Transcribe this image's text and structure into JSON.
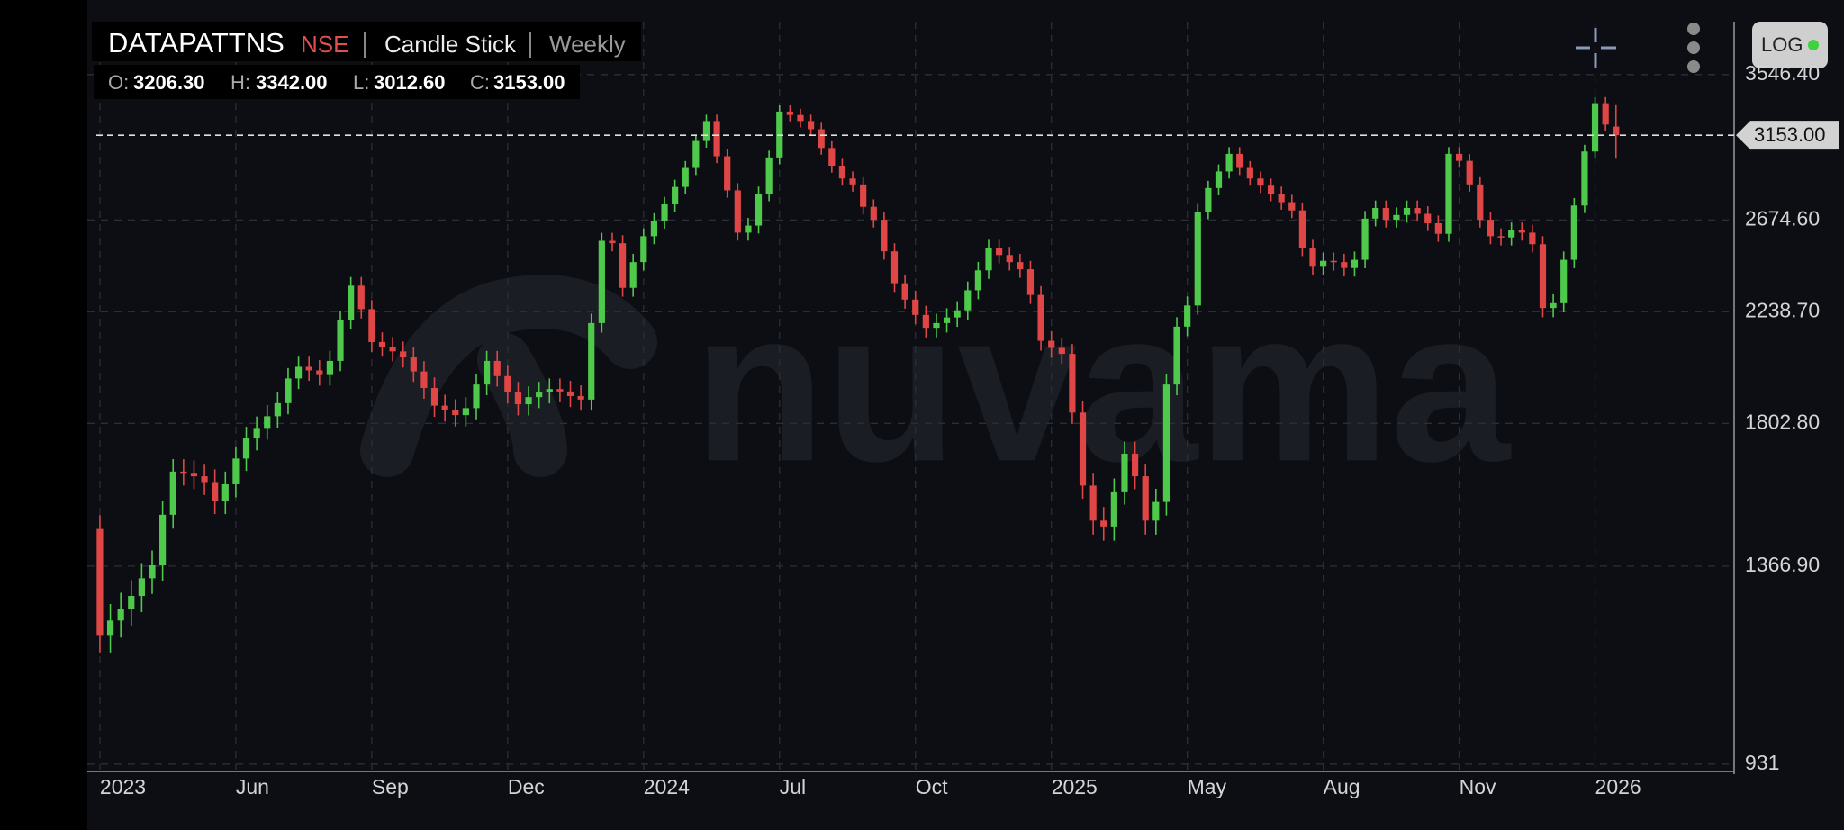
{
  "chart_data": {
    "type": "candlestick",
    "symbol": "DATAPATTNS",
    "exchange": "NSE",
    "chart_style": "Candle Stick",
    "interval": "Weekly",
    "ohlc_legend": [
      {
        "label": "O:",
        "value": "3206.30"
      },
      {
        "label": "H:",
        "value": "3342.00"
      },
      {
        "label": "L:",
        "value": "3012.60"
      },
      {
        "label": "C:",
        "value": "3153.00"
      }
    ],
    "log_button": "LOG",
    "watermark": "nuvama",
    "log_scale": true,
    "grid": true,
    "up_color": "#4fc94c",
    "down_color": "#e04646",
    "last_price": {
      "value": 3153,
      "label": "3153.00"
    },
    "ylim": [
      921,
      3930
    ],
    "yticks": [
      931,
      {
        "value": 1366.9,
        "label": "1366.90"
      },
      {
        "value": 1802.8,
        "label": "1802.80"
      },
      {
        "value": 2238.7,
        "label": "2238.70"
      },
      {
        "value": 2674.6,
        "label": "2674.60"
      },
      {
        "value": 3546.4,
        "label": "3546.40"
      }
    ],
    "xlim": [
      -1.2,
      156.3
    ],
    "xticks": [
      {
        "value": 0,
        "label": "2023"
      },
      {
        "value": 13,
        "label": "Jun"
      },
      {
        "value": 26,
        "label": "Sep"
      },
      {
        "value": 39,
        "label": "Dec"
      },
      {
        "value": 52,
        "label": "2024"
      },
      {
        "value": 65,
        "label": "Jul"
      },
      {
        "value": 78,
        "label": "Oct"
      },
      {
        "value": 91,
        "label": "2025"
      },
      {
        "value": 104,
        "label": "May"
      },
      {
        "value": 117,
        "label": "Aug"
      },
      {
        "value": 130,
        "label": "Nov"
      },
      {
        "value": 143,
        "label": "2026"
      }
    ],
    "open": [
      1469,
      1196,
      1230,
      1258,
      1290,
      1335,
      1369,
      1510,
      1642,
      1638,
      1627,
      1609,
      1552,
      1602,
      1684,
      1751,
      1787,
      1828,
      1875,
      1967,
      2012,
      1998,
      1980,
      2035,
      2204,
      2355,
      2250,
      2111,
      2092,
      2073,
      2049,
      1994,
      1931,
      1866,
      1849,
      1832,
      1857,
      1944,
      2035,
      1976,
      1914,
      1871,
      1897,
      1914,
      1927,
      1918,
      1901,
      1888,
      2190,
      2569,
      2557,
      2345,
      2465,
      2592,
      2670,
      2757,
      2852,
      2959,
      3118,
      3241,
      3027,
      2833,
      2610,
      2646,
      2814,
      3020,
      3301,
      3279,
      3241,
      3190,
      3076,
      2972,
      2899,
      2866,
      2744,
      2676,
      2517,
      2366,
      2292,
      2225,
      2170,
      2190,
      2214,
      2245,
      2334,
      2426,
      2534,
      2499,
      2465,
      2431,
      2313,
      2116,
      2087,
      2063,
      1841,
      1598,
      1493,
      1476,
      1580,
      1700,
      1627,
      1493,
      1548,
      1944,
      2175,
      2266,
      2719,
      2846,
      2939,
      3041,
      2959,
      2899,
      2859,
      2814,
      2769,
      2725,
      2534,
      2443,
      2471,
      2465,
      2437,
      2476,
      2682,
      2738,
      2676,
      2701,
      2738,
      2707,
      2658,
      2604,
      3041,
      3000,
      2866,
      2676,
      2592,
      2586,
      2622,
      2610,
      2552,
      2255,
      2276,
      2476,
      2751,
      3055,
      3355,
      3206.3
    ],
    "high": [
      1509,
      1270,
      1298,
      1330,
      1375,
      1409,
      1550,
      1682,
      1682,
      1678,
      1667,
      1649,
      1642,
      1724,
      1791,
      1827,
      1868,
      1915,
      2007,
      2052,
      2052,
      2038,
      2075,
      2244,
      2395,
      2395,
      2290,
      2151,
      2132,
      2113,
      2089,
      2034,
      1971,
      1906,
      1889,
      1897,
      1984,
      2075,
      2075,
      2016,
      1954,
      1937,
      1954,
      1967,
      1967,
      1958,
      1941,
      2230,
      2609,
      2609,
      2597,
      2505,
      2632,
      2710,
      2797,
      2892,
      2999,
      3158,
      3281,
      3281,
      3067,
      2873,
      2686,
      2854,
      3060,
      3341,
      3341,
      3319,
      3281,
      3230,
      3116,
      3012,
      2939,
      2906,
      2784,
      2716,
      2557,
      2406,
      2332,
      2265,
      2230,
      2254,
      2285,
      2374,
      2466,
      2574,
      2574,
      2539,
      2505,
      2471,
      2353,
      2156,
      2127,
      2103,
      1881,
      1638,
      1533,
      1620,
      1740,
      1740,
      1667,
      1588,
      1984,
      2215,
      2306,
      2759,
      2886,
      2979,
      3081,
      3081,
      2999,
      2939,
      2899,
      2854,
      2809,
      2765,
      2574,
      2511,
      2511,
      2505,
      2516,
      2722,
      2778,
      2778,
      2741,
      2778,
      2778,
      2747,
      2698,
      3081,
      3081,
      3040,
      2906,
      2716,
      2632,
      2662,
      2662,
      2650,
      2592,
      2316,
      2516,
      2791,
      3095,
      3395,
      3395,
      3342
    ],
    "low": [
      1156,
      1156,
      1190,
      1218,
      1250,
      1295,
      1329,
      1470,
      1598,
      1587,
      1569,
      1512,
      1512,
      1562,
      1644,
      1711,
      1747,
      1788,
      1835,
      1927,
      1958,
      1940,
      1940,
      1995,
      2164,
      2210,
      2071,
      2052,
      2033,
      2009,
      1954,
      1891,
      1826,
      1809,
      1792,
      1792,
      1817,
      1904,
      1936,
      1874,
      1831,
      1831,
      1857,
      1874,
      1878,
      1861,
      1848,
      1848,
      2150,
      2517,
      2305,
      2305,
      2425,
      2552,
      2630,
      2717,
      2812,
      2919,
      3078,
      2987,
      2793,
      2570,
      2570,
      2606,
      2774,
      2980,
      3239,
      3201,
      3150,
      3036,
      2932,
      2859,
      2826,
      2704,
      2636,
      2477,
      2326,
      2252,
      2185,
      2130,
      2130,
      2150,
      2174,
      2205,
      2294,
      2386,
      2459,
      2425,
      2391,
      2273,
      2076,
      2047,
      2023,
      1801,
      1558,
      1453,
      1436,
      1436,
      1540,
      1587,
      1453,
      1453,
      1508,
      1904,
      2135,
      2226,
      2679,
      2806,
      2899,
      2919,
      2859,
      2819,
      2774,
      2729,
      2685,
      2494,
      2403,
      2403,
      2425,
      2397,
      2397,
      2436,
      2642,
      2636,
      2636,
      2661,
      2667,
      2618,
      2564,
      2564,
      2960,
      2826,
      2636,
      2552,
      2546,
      2546,
      2570,
      2512,
      2215,
      2215,
      2236,
      2436,
      2711,
      3015,
      3179,
      3012.6
    ],
    "close": [
      1196,
      1230,
      1258,
      1290,
      1335,
      1369,
      1510,
      1642,
      1638,
      1627,
      1609,
      1552,
      1602,
      1684,
      1751,
      1787,
      1828,
      1875,
      1967,
      2012,
      1998,
      1980,
      2035,
      2204,
      2355,
      2250,
      2111,
      2092,
      2073,
      2049,
      1994,
      1931,
      1866,
      1849,
      1832,
      1857,
      1944,
      2035,
      1976,
      1914,
      1871,
      1897,
      1914,
      1927,
      1918,
      1901,
      1888,
      2190,
      2569,
      2557,
      2345,
      2465,
      2592,
      2670,
      2757,
      2852,
      2959,
      3118,
      3241,
      3027,
      2833,
      2610,
      2646,
      2814,
      3020,
      3301,
      3279,
      3241,
      3190,
      3076,
      2972,
      2899,
      2866,
      2744,
      2676,
      2517,
      2366,
      2292,
      2225,
      2170,
      2190,
      2214,
      2245,
      2334,
      2426,
      2534,
      2499,
      2465,
      2431,
      2313,
      2116,
      2087,
      2063,
      1841,
      1598,
      1493,
      1476,
      1580,
      1700,
      1627,
      1493,
      1548,
      1944,
      2175,
      2266,
      2719,
      2846,
      2939,
      3041,
      2959,
      2899,
      2859,
      2814,
      2769,
      2725,
      2534,
      2443,
      2471,
      2465,
      2437,
      2476,
      2682,
      2738,
      2676,
      2701,
      2738,
      2707,
      2658,
      2604,
      3041,
      3000,
      2866,
      2676,
      2592,
      2586,
      2622,
      2610,
      2552,
      2255,
      2276,
      2476,
      2751,
      3055,
      3355,
      3219,
      3153
    ]
  }
}
